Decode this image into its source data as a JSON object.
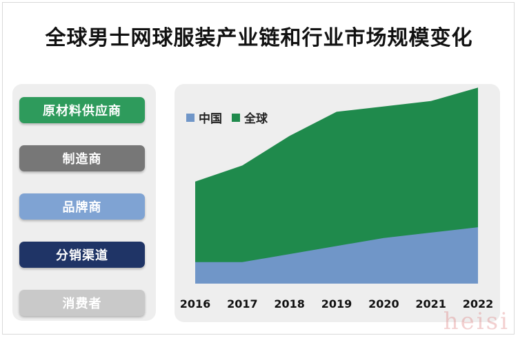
{
  "title": "全球男士网球服装产业链和行业市场规模变化",
  "chain": [
    {
      "label": "原材料供应商",
      "color": "#2e9b5c"
    },
    {
      "label": "制造商",
      "color": "#777777"
    },
    {
      "label": "品牌商",
      "color": "#7fa3d3"
    },
    {
      "label": "分销渠道",
      "color": "#1f3466"
    },
    {
      "label": "消费者",
      "color": "#c9c9c9"
    }
  ],
  "watermark": "heisi",
  "chart_data": {
    "type": "area",
    "categories": [
      "2016",
      "2017",
      "2018",
      "2019",
      "2020",
      "2021",
      "2022"
    ],
    "stacked": false,
    "series": [
      {
        "name": "全球",
        "color": "#1f8a4c",
        "values": [
          38,
          44,
          55,
          64,
          66,
          68,
          73
        ]
      },
      {
        "name": "中国",
        "color": "#7096c8",
        "values": [
          8,
          8,
          11,
          14,
          17,
          19,
          21
        ]
      }
    ],
    "ylim": [
      0,
      80
    ],
    "legend": "top-left",
    "grid": false
  }
}
